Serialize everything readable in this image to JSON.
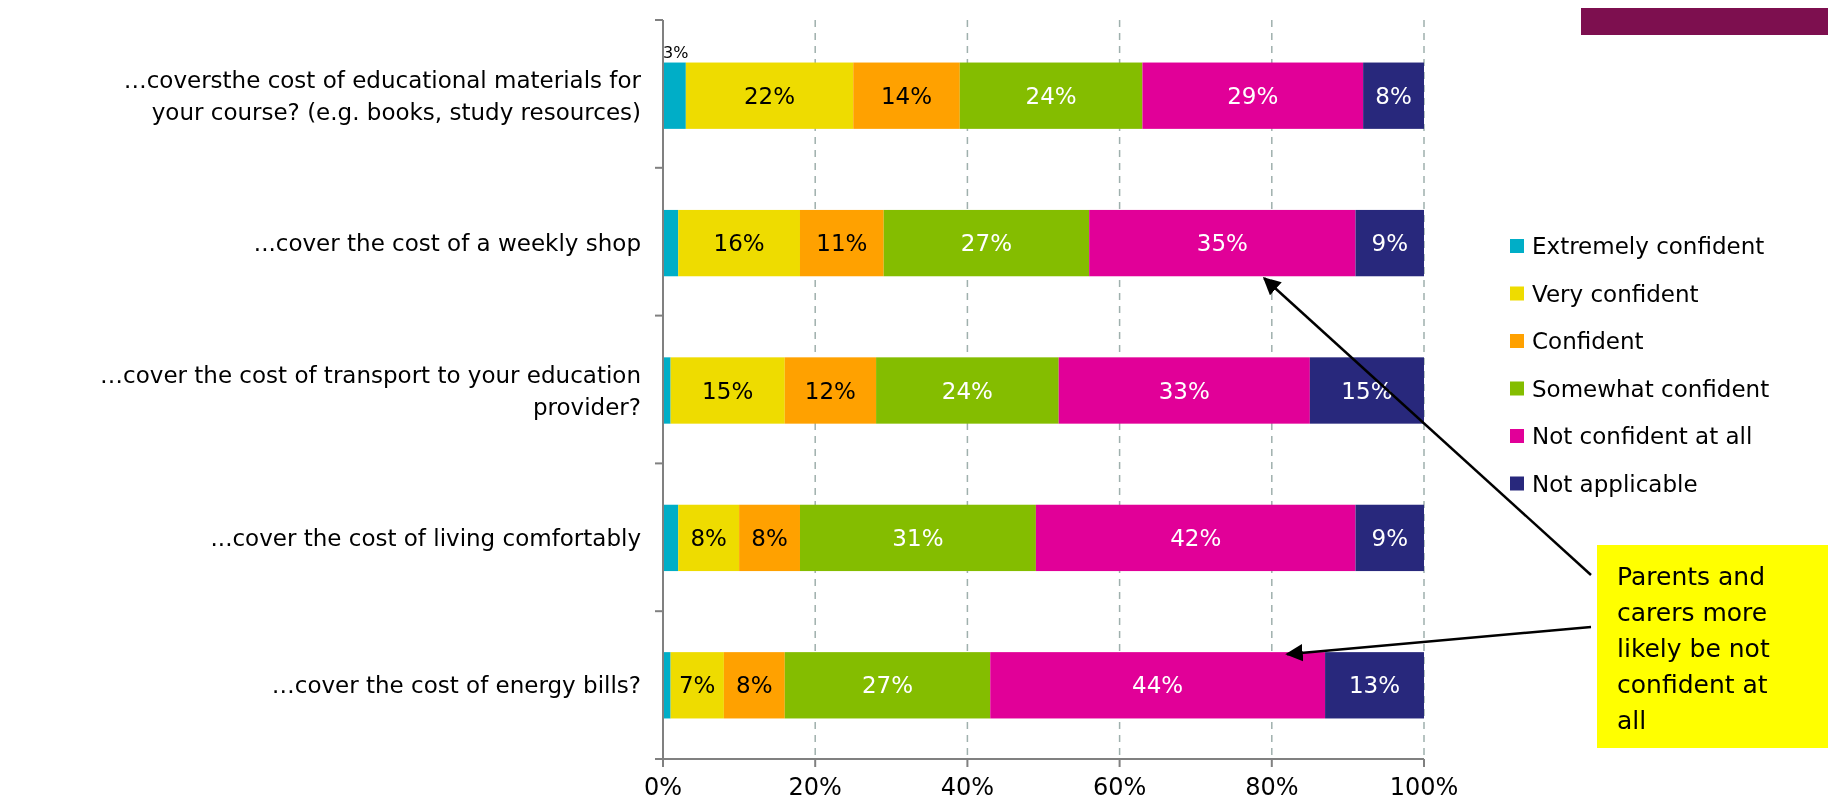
{
  "chart_data": {
    "type": "bar",
    "orientation": "horizontal",
    "stacked": true,
    "categories": [
      "…coversthe cost of educational materials for your course? (e.g. books, study resources)",
      "...cover the cost of a weekly shop",
      "…cover the cost of transport to your education provider?",
      "...cover the cost of living comfortably",
      "…cover the cost of energy bills?"
    ],
    "series": [
      {
        "name": "Extremely confident",
        "color": "#00aec7",
        "values": [
          3,
          2,
          1,
          2,
          1
        ],
        "value_labels": [
          "3%",
          null,
          null,
          null,
          null
        ]
      },
      {
        "name": "Very confident",
        "color": "#eedc00",
        "values": [
          22,
          16,
          15,
          8,
          7
        ],
        "value_labels": [
          "22%",
          "16%",
          "15%",
          "8%",
          "7%"
        ]
      },
      {
        "name": "Confident",
        "color": "#ffa100",
        "values": [
          14,
          11,
          12,
          8,
          8
        ],
        "value_labels": [
          "14%",
          "11%",
          "12%",
          "8%",
          "8%"
        ]
      },
      {
        "name": "Somewhat  confident",
        "color": "#84bd00",
        "values": [
          24,
          27,
          24,
          31,
          27
        ],
        "value_labels": [
          "24%",
          "27%",
          "24%",
          "31%",
          "27%"
        ]
      },
      {
        "name": "Not confident at all",
        "color": "#e10098",
        "values": [
          29,
          35,
          33,
          42,
          44
        ],
        "value_labels": [
          "29%",
          "35%",
          "33%",
          "42%",
          "44%"
        ]
      },
      {
        "name": "Not applicable",
        "color": "#28287c",
        "values": [
          8,
          9,
          15,
          9,
          13
        ],
        "value_labels": [
          "8%",
          "9%",
          "15%",
          "9%",
          "13%"
        ]
      }
    ],
    "xlim": [
      0,
      100
    ],
    "xticks": [
      {
        "value": 0,
        "label": "0%"
      },
      {
        "value": 20,
        "label": "20%"
      },
      {
        "value": 40,
        "label": "40%"
      },
      {
        "value": 60,
        "label": "60%"
      },
      {
        "value": 80,
        "label": "80%"
      },
      {
        "value": 100,
        "label": "100%"
      }
    ],
    "grid": "x",
    "legend": "right",
    "annotations": [
      "Parents and carers more likely be not confident at all"
    ]
  }
}
